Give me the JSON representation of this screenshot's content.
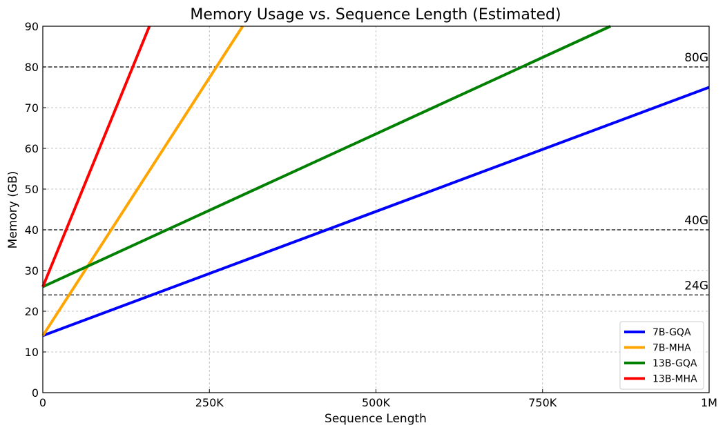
{
  "chart_data": {
    "type": "line",
    "title": "Memory Usage vs. Sequence Length (Estimated)",
    "xlabel": "Sequence Length",
    "ylabel": "Memory (GB)",
    "xlim": [
      0,
      1000000
    ],
    "ylim": [
      0,
      90
    ],
    "grid": true,
    "legend_position": "bottom-right",
    "x_ticks": [
      {
        "value": 0,
        "label": "0"
      },
      {
        "value": 250000,
        "label": "250K"
      },
      {
        "value": 500000,
        "label": "500K"
      },
      {
        "value": 750000,
        "label": "750K"
      },
      {
        "value": 1000000,
        "label": "1M"
      }
    ],
    "y_ticks": [
      {
        "value": 0,
        "label": "0"
      },
      {
        "value": 10,
        "label": "10"
      },
      {
        "value": 20,
        "label": "20"
      },
      {
        "value": 30,
        "label": "30"
      },
      {
        "value": 40,
        "label": "40"
      },
      {
        "value": 50,
        "label": "50"
      },
      {
        "value": 60,
        "label": "60"
      },
      {
        "value": 70,
        "label": "70"
      },
      {
        "value": 80,
        "label": "80"
      },
      {
        "value": 90,
        "label": "90"
      }
    ],
    "series": [
      {
        "name": "7B-GQA",
        "color": "#0000ff",
        "x": [
          0,
          1000000
        ],
        "y": [
          14,
          75
        ]
      },
      {
        "name": "7B-MHA",
        "color": "#ffa500",
        "x": [
          0,
          300000
        ],
        "y": [
          14,
          90
        ]
      },
      {
        "name": "13B-GQA",
        "color": "#008000",
        "x": [
          0,
          852000
        ],
        "y": [
          26,
          90
        ]
      },
      {
        "name": "13B-MHA",
        "color": "#ff0000",
        "x": [
          0,
          160000
        ],
        "y": [
          26,
          90
        ]
      }
    ],
    "reference_lines": [
      {
        "y": 80,
        "label": "80G"
      },
      {
        "y": 40,
        "label": "40G"
      },
      {
        "y": 24,
        "label": "24G"
      }
    ]
  }
}
